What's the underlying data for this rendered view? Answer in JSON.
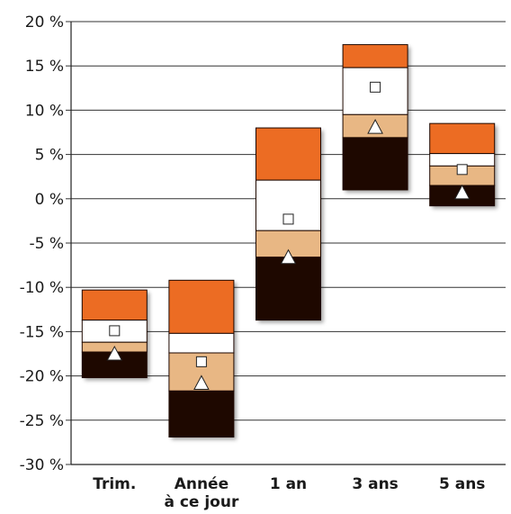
{
  "chart_data": {
    "type": "floating-stacked-bar",
    "title": "",
    "xlabel": "",
    "ylabel": "",
    "ylim": [
      -30,
      20
    ],
    "y_ticks": [
      20,
      15,
      10,
      5,
      0,
      -5,
      -10,
      -15,
      -20,
      -25,
      -30
    ],
    "y_tick_labels": [
      "20 %",
      "15 %",
      "10 %",
      "5 %",
      "0 %",
      "-5 %",
      "-10 %",
      "-15 %",
      "-20 %",
      "-25 %",
      "-30 %"
    ],
    "grid": true,
    "legend": "none",
    "categories": [
      {
        "label_lines": [
          "Trim."
        ]
      },
      {
        "label_lines": [
          "Année",
          "à ce jour"
        ]
      },
      {
        "label_lines": [
          "1 an"
        ]
      },
      {
        "label_lines": [
          "3 ans"
        ]
      },
      {
        "label_lines": [
          "5 ans"
        ]
      }
    ],
    "band_colors": [
      "#ec6c23",
      "#ffffff",
      "#e8b784",
      "#1e0800"
    ],
    "boundaries": [
      [
        -10.3,
        -13.7,
        -16.2,
        -17.3,
        -20.2
      ],
      [
        -9.2,
        -15.2,
        -17.4,
        -21.7,
        -26.9
      ],
      [
        8.0,
        2.1,
        -3.6,
        -6.6,
        -13.7
      ],
      [
        17.4,
        14.8,
        9.5,
        6.9,
        1.0
      ],
      [
        8.5,
        5.1,
        3.7,
        1.5,
        -0.8
      ]
    ],
    "square_marker": [
      -14.9,
      -18.4,
      -2.3,
      12.6,
      3.3
    ],
    "triangle_marker": [
      -17.5,
      -20.8,
      -6.6,
      8.1,
      0.7
    ]
  }
}
